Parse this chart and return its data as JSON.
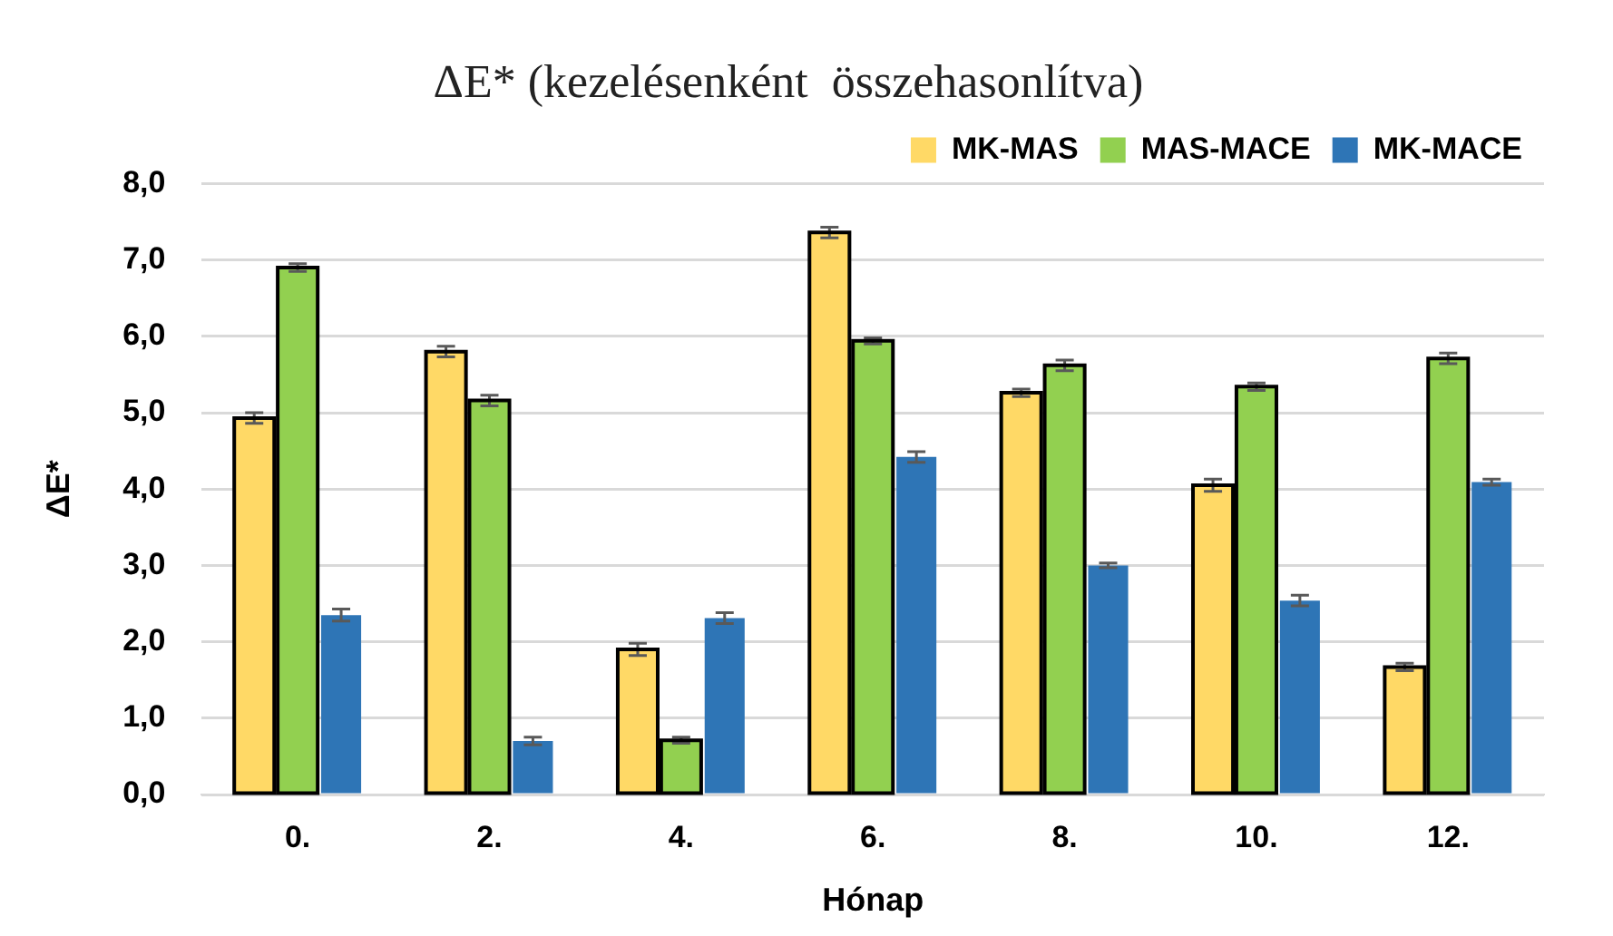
{
  "chart_data": {
    "type": "bar",
    "title": "ΔE* (kezelésenként  összehasonlítva)",
    "xlabel": "Hónap",
    "ylabel": "ΔE*",
    "categories": [
      "0.",
      "2.",
      "4.",
      "6.",
      "8.",
      "10.",
      "12."
    ],
    "series": [
      {
        "name": "MK-MAS",
        "color": "#ffd966",
        "values": [
          4.93,
          5.8,
          1.9,
          7.36,
          5.26,
          4.05,
          1.67
        ],
        "errors": [
          0.07,
          0.07,
          0.08,
          0.07,
          0.05,
          0.08,
          0.05
        ]
      },
      {
        "name": "MAS-MACE",
        "color": "#92d050",
        "values": [
          6.9,
          5.16,
          0.71,
          5.94,
          5.62,
          5.34,
          5.71
        ],
        "errors": [
          0.05,
          0.07,
          0.04,
          0.04,
          0.07,
          0.05,
          0.07
        ]
      },
      {
        "name": "MK-MACE",
        "color": "#2e75b6",
        "values": [
          2.35,
          0.7,
          2.31,
          4.42,
          3.0,
          2.54,
          4.09
        ],
        "errors": [
          0.08,
          0.05,
          0.07,
          0.07,
          0.03,
          0.07,
          0.04
        ]
      }
    ],
    "ylim": [
      0,
      8
    ],
    "yticks": [
      {
        "value": 0,
        "label": "0,0"
      },
      {
        "value": 1,
        "label": "1,0"
      },
      {
        "value": 2,
        "label": "2,0"
      },
      {
        "value": 3,
        "label": "3,0"
      },
      {
        "value": 4,
        "label": "4,0"
      },
      {
        "value": 5,
        "label": "5,0"
      },
      {
        "value": 6,
        "label": "6,0"
      },
      {
        "value": 7,
        "label": "7,0"
      },
      {
        "value": 8,
        "label": "8,0"
      }
    ],
    "grid": "y",
    "legend": "top right"
  }
}
